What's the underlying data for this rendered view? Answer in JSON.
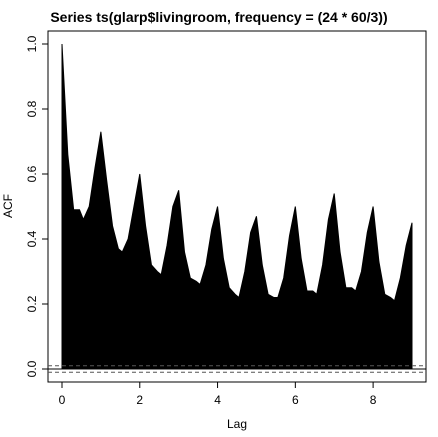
{
  "chart_data": {
    "type": "area",
    "title": "Series  ts(glarp$livingroom, frequency = (24 * 60/3))",
    "xlabel": "Lag",
    "ylabel": "ACF",
    "xlim": [
      -0.36,
      9.36
    ],
    "ylim": [
      -0.04,
      1.04
    ],
    "x_ticks": [
      0,
      2,
      4,
      6,
      8
    ],
    "y_ticks": [
      0.0,
      0.2,
      0.4,
      0.6,
      0.8,
      1.0
    ],
    "x_tick_labels": [
      "0",
      "2",
      "4",
      "6",
      "8"
    ],
    "y_tick_labels": [
      "0.0",
      "0.2",
      "0.4",
      "0.6",
      "0.8",
      "1.0"
    ],
    "confidence_band": 0.01,
    "grid": false,
    "legend": "none",
    "fill_color": "#000000",
    "series": [
      {
        "x": [
          0,
          0.15,
          0.3,
          0.45,
          0.55,
          0.7,
          0.85,
          1.0,
          1.15,
          1.3,
          1.45,
          1.55,
          1.7,
          1.85,
          2.0,
          2.15,
          2.3,
          2.45,
          2.55,
          2.7,
          2.85,
          3.0,
          3.15,
          3.3,
          3.45,
          3.55,
          3.7,
          3.85,
          4.0,
          4.15,
          4.3,
          4.45,
          4.55,
          4.7,
          4.85,
          5.0,
          5.15,
          5.3,
          5.45,
          5.55,
          5.7,
          5.85,
          6.0,
          6.15,
          6.3,
          6.45,
          6.55,
          6.7,
          6.85,
          7.0,
          7.15,
          7.3,
          7.45,
          7.55,
          7.7,
          7.85,
          8.0,
          8.15,
          8.3,
          8.45,
          8.55,
          8.7,
          8.85,
          9.0
        ],
        "y": [
          1.0,
          0.66,
          0.49,
          0.49,
          0.46,
          0.5,
          0.62,
          0.73,
          0.58,
          0.44,
          0.37,
          0.36,
          0.4,
          0.5,
          0.6,
          0.44,
          0.32,
          0.3,
          0.29,
          0.38,
          0.5,
          0.55,
          0.36,
          0.28,
          0.27,
          0.26,
          0.32,
          0.43,
          0.5,
          0.34,
          0.25,
          0.23,
          0.22,
          0.3,
          0.42,
          0.47,
          0.32,
          0.23,
          0.22,
          0.22,
          0.28,
          0.41,
          0.5,
          0.34,
          0.24,
          0.24,
          0.23,
          0.32,
          0.46,
          0.54,
          0.36,
          0.25,
          0.25,
          0.24,
          0.3,
          0.42,
          0.5,
          0.33,
          0.23,
          0.22,
          0.21,
          0.28,
          0.38,
          0.45
        ]
      }
    ]
  }
}
